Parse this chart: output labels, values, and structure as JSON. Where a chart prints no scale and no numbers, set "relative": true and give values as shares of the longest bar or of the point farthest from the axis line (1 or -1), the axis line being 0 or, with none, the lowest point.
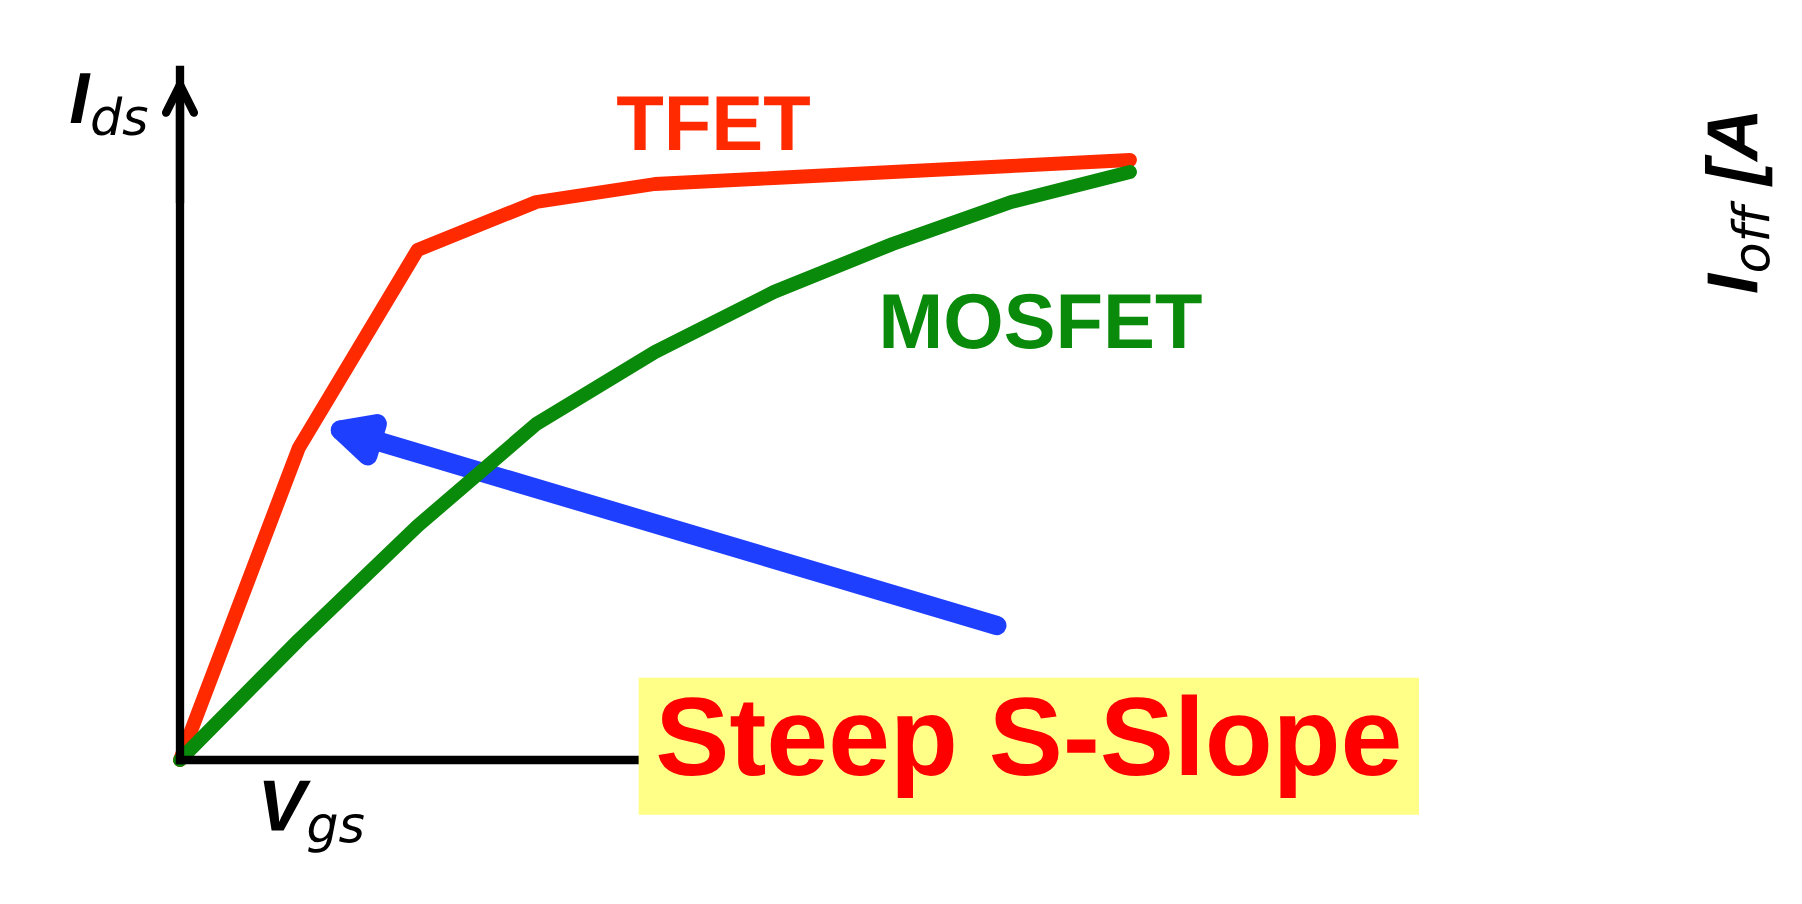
{
  "chart_data": {
    "type": "line",
    "relative": true,
    "xlabel": "V$_{gs}$",
    "ylabel": "I$_{ds}$",
    "legend": false,
    "marker": "none",
    "line_style": "solid",
    "categories": [
      null,
      null,
      null,
      null,
      null,
      null,
      null,
      null,
      null
    ],
    "series": [
      {
        "name": "TFET",
        "color": "#ff2a00",
        "values": [
          0,
          0.52,
          0.85,
          0.93,
          0.96,
          0.97,
          0.98,
          0.99,
          1
        ]
      },
      {
        "name": "MOSFET",
        "color": "#0a8a0a",
        "values": [
          0,
          0.2,
          0.39,
          0.56,
          0.68,
          0.78,
          0.86,
          0.93,
          0.98
        ]
      }
    ],
    "annotations": [
      "Steep S-Slope",
      "I$_{off}$ [A"
    ]
  }
}
